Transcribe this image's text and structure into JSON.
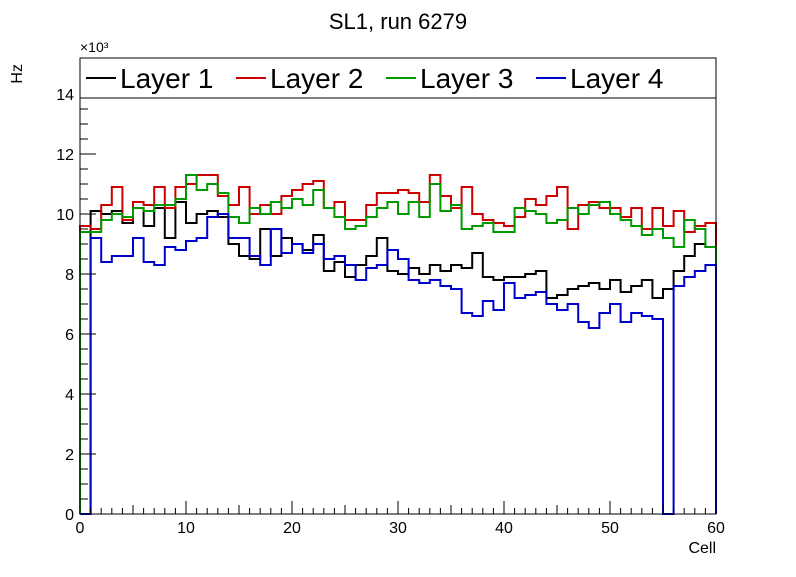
{
  "chart_data": {
    "type": "line",
    "drawstyle": "steps",
    "title": "SL1, run 6279",
    "xlabel": "Cell",
    "ylabel": "Hz",
    "y_multiplier": "×10³",
    "xlim": [
      0,
      60
    ],
    "ylim": [
      0,
      15000
    ],
    "x_ticks": [
      0,
      10,
      20,
      30,
      40,
      50,
      60
    ],
    "y_ticks": [
      0,
      2,
      4,
      6,
      8,
      10,
      12,
      14
    ],
    "grid": false,
    "legend_position": "top",
    "bin_width": 1,
    "series": [
      {
        "name": "Layer 1",
        "color": "#000000",
        "values": [
          0,
          10100,
          10000,
          10100,
          9700,
          10200,
          9600,
          10200,
          9200,
          10400,
          9700,
          10000,
          10100,
          9900,
          9000,
          8600,
          8500,
          9500,
          8600,
          9200,
          9000,
          8800,
          9300,
          8100,
          8400,
          7900,
          8300,
          8600,
          9200,
          8100,
          8000,
          8200,
          8000,
          8300,
          8100,
          8300,
          8200,
          8700,
          7900,
          7800,
          7900,
          7900,
          8000,
          8100,
          7200,
          7300,
          7500,
          7600,
          7700,
          7500,
          7800,
          7400,
          7600,
          7800,
          7200,
          7500,
          8100,
          8600,
          9000,
          8900
        ]
      },
      {
        "name": "Layer 2",
        "color": "#cc0000",
        "values": [
          9600,
          9500,
          10300,
          10900,
          9800,
          10400,
          10300,
          10900,
          10200,
          10900,
          11000,
          11300,
          11300,
          10600,
          10300,
          10900,
          10000,
          10300,
          10000,
          10600,
          10800,
          11000,
          11100,
          10200,
          10400,
          9800,
          9800,
          10300,
          10700,
          10700,
          10800,
          10700,
          10400,
          11300,
          10600,
          10200,
          10900,
          10000,
          9800,
          9700,
          9600,
          9900,
          10500,
          10300,
          10600,
          10900,
          9500,
          10300,
          10400,
          10200,
          10200,
          9900,
          10200,
          9500,
          10200,
          9600,
          10100,
          9400,
          9600,
          9700
        ]
      },
      {
        "name": "Layer 3",
        "color": "#009900",
        "values": [
          9400,
          9400,
          9800,
          10000,
          9900,
          10200,
          10100,
          10300,
          10300,
          10500,
          11300,
          10800,
          11000,
          10700,
          9900,
          9700,
          10200,
          10000,
          10400,
          10200,
          10500,
          10300,
          10800,
          10200,
          9900,
          9500,
          9600,
          9900,
          10200,
          10400,
          10000,
          10400,
          9900,
          11000,
          10100,
          10300,
          9500,
          9600,
          9700,
          9400,
          9400,
          10200,
          10100,
          10000,
          9700,
          9800,
          10200,
          10000,
          10300,
          10400,
          10000,
          9800,
          9600,
          9300,
          9500,
          9200,
          8900,
          9800,
          9500,
          8900
        ]
      },
      {
        "name": "Layer 4",
        "color": "#0000cc",
        "values": [
          0,
          9200,
          8400,
          8600,
          8600,
          9200,
          8400,
          8300,
          8900,
          8800,
          9100,
          9200,
          9900,
          10000,
          9200,
          9200,
          8600,
          8300,
          9500,
          8700,
          9000,
          8700,
          9000,
          8500,
          8600,
          8300,
          7800,
          8200,
          8300,
          8800,
          8500,
          7800,
          7700,
          7800,
          7600,
          7500,
          6700,
          6600,
          7100,
          6800,
          7700,
          7200,
          7300,
          7400,
          7000,
          6800,
          7000,
          6400,
          6200,
          6700,
          7000,
          6400,
          6700,
          6600,
          6500,
          0,
          7600,
          7900,
          8100,
          8300
        ]
      }
    ]
  }
}
